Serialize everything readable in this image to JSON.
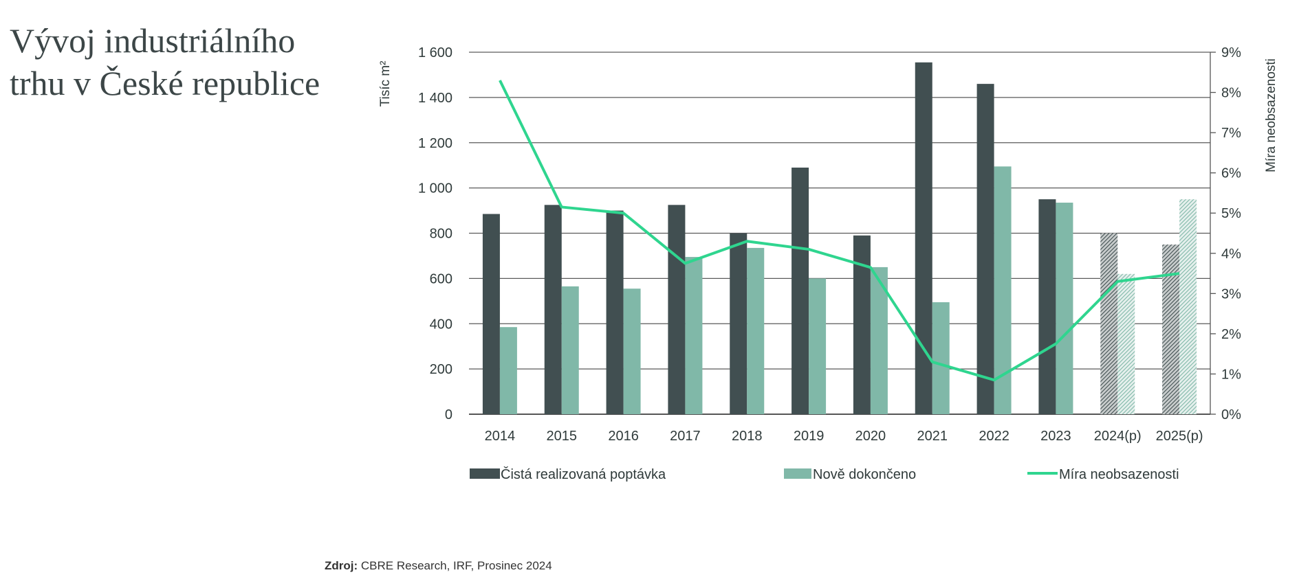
{
  "title_line1": "Vývoj industriálního",
  "title_line2": "trhu v České republice",
  "source_label": "Zdroj:",
  "source_text": "CBRE Research, IRF, Prosinec 2024",
  "chart_data": {
    "type": "bar+line",
    "categories": [
      "2014",
      "2015",
      "2016",
      "2017",
      "2018",
      "2019",
      "2020",
      "2021",
      "2022",
      "2023",
      "2024(p)",
      "2025(p)"
    ],
    "forecast_categories": [
      "2024(p)",
      "2025(p)"
    ],
    "ylabel": "Tisíc m²",
    "y2label": "Míra neobsazenosti",
    "ylim": [
      0,
      1600
    ],
    "yticks": [
      "0",
      "200",
      "400",
      "600",
      "800",
      "1 000",
      "1 200",
      "1 400",
      "1 600"
    ],
    "y2lim": [
      0,
      9
    ],
    "y2ticks": [
      "0%",
      "1%",
      "2%",
      "3%",
      "4%",
      "5%",
      "6%",
      "7%",
      "8%",
      "9%"
    ],
    "grid": true,
    "legend": "bottom",
    "series": [
      {
        "name": "Čistá realizovaná poptávka",
        "type": "bar",
        "axis": "left",
        "color": "#414f51",
        "values": [
          885,
          925,
          900,
          925,
          800,
          1090,
          790,
          1555,
          1460,
          950,
          800,
          750
        ]
      },
      {
        "name": "Nově dokončeno",
        "type": "bar",
        "axis": "left",
        "color": "#80b8a8",
        "values": [
          385,
          565,
          555,
          695,
          735,
          600,
          650,
          495,
          1095,
          935,
          620,
          950
        ]
      },
      {
        "name": "Míra neobsazenosti",
        "type": "line",
        "axis": "right",
        "color": "#2fd58f",
        "values": [
          8.3,
          5.15,
          5.0,
          3.75,
          4.3,
          4.1,
          3.65,
          1.3,
          0.85,
          1.75,
          3.3,
          3.5
        ]
      }
    ]
  }
}
